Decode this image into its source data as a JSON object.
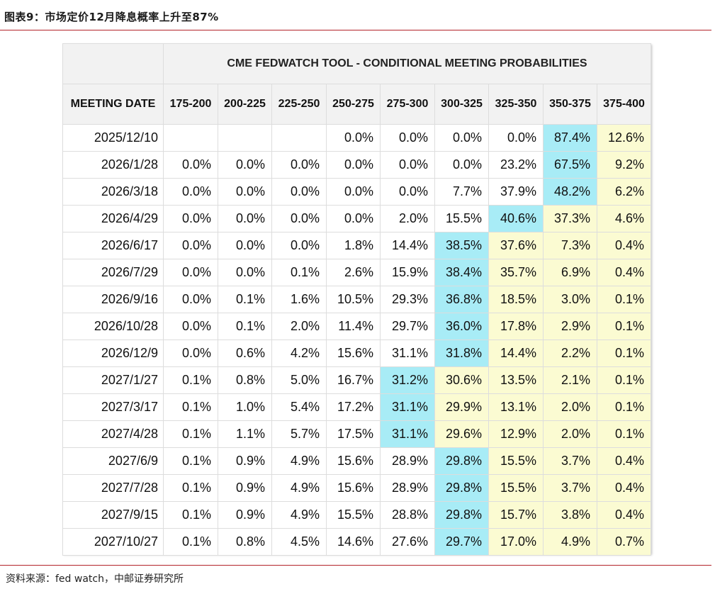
{
  "figure_title": "图表9：市场定价12月降息概率上升至87%",
  "source_note": "资料来源：fed watch，中邮证券研究所",
  "colors": {
    "rule": "#b3232a",
    "header_bg": "#f2f2f2",
    "highlight_max": "#a8ecf6",
    "highlight_after": "#fbfbd2"
  },
  "table": {
    "title": "CME FEDWATCH TOOL - CONDITIONAL MEETING PROBABILITIES",
    "date_header": "MEETING DATE",
    "columns": [
      "175-200",
      "200-225",
      "225-250",
      "250-275",
      "275-300",
      "300-325",
      "325-350",
      "350-375",
      "375-400"
    ],
    "rows": [
      {
        "date": "2025/12/10",
        "values": [
          "",
          "",
          "",
          "0.0%",
          "0.0%",
          "0.0%",
          "0.0%",
          "87.4%",
          "12.6%"
        ],
        "max_index": 7
      },
      {
        "date": "2026/1/28",
        "values": [
          "0.0%",
          "0.0%",
          "0.0%",
          "0.0%",
          "0.0%",
          "0.0%",
          "23.2%",
          "67.5%",
          "9.2%"
        ],
        "max_index": 7
      },
      {
        "date": "2026/3/18",
        "values": [
          "0.0%",
          "0.0%",
          "0.0%",
          "0.0%",
          "0.0%",
          "7.7%",
          "37.9%",
          "48.2%",
          "6.2%"
        ],
        "max_index": 7
      },
      {
        "date": "2026/4/29",
        "values": [
          "0.0%",
          "0.0%",
          "0.0%",
          "0.0%",
          "2.0%",
          "15.5%",
          "40.6%",
          "37.3%",
          "4.6%"
        ],
        "max_index": 6
      },
      {
        "date": "2026/6/17",
        "values": [
          "0.0%",
          "0.0%",
          "0.0%",
          "1.8%",
          "14.4%",
          "38.5%",
          "37.6%",
          "7.3%",
          "0.4%"
        ],
        "max_index": 5
      },
      {
        "date": "2026/7/29",
        "values": [
          "0.0%",
          "0.0%",
          "0.1%",
          "2.6%",
          "15.9%",
          "38.4%",
          "35.7%",
          "6.9%",
          "0.4%"
        ],
        "max_index": 5
      },
      {
        "date": "2026/9/16",
        "values": [
          "0.0%",
          "0.1%",
          "1.6%",
          "10.5%",
          "29.3%",
          "36.8%",
          "18.5%",
          "3.0%",
          "0.1%"
        ],
        "max_index": 5
      },
      {
        "date": "2026/10/28",
        "values": [
          "0.0%",
          "0.1%",
          "2.0%",
          "11.4%",
          "29.7%",
          "36.0%",
          "17.8%",
          "2.9%",
          "0.1%"
        ],
        "max_index": 5
      },
      {
        "date": "2026/12/9",
        "values": [
          "0.0%",
          "0.6%",
          "4.2%",
          "15.6%",
          "31.1%",
          "31.8%",
          "14.4%",
          "2.2%",
          "0.1%"
        ],
        "max_index": 5
      },
      {
        "date": "2027/1/27",
        "values": [
          "0.1%",
          "0.8%",
          "5.0%",
          "16.7%",
          "31.2%",
          "30.6%",
          "13.5%",
          "2.1%",
          "0.1%"
        ],
        "max_index": 4
      },
      {
        "date": "2027/3/17",
        "values": [
          "0.1%",
          "1.0%",
          "5.4%",
          "17.2%",
          "31.1%",
          "29.9%",
          "13.1%",
          "2.0%",
          "0.1%"
        ],
        "max_index": 4
      },
      {
        "date": "2027/4/28",
        "values": [
          "0.1%",
          "1.1%",
          "5.7%",
          "17.5%",
          "31.1%",
          "29.6%",
          "12.9%",
          "2.0%",
          "0.1%"
        ],
        "max_index": 4
      },
      {
        "date": "2027/6/9",
        "values": [
          "0.1%",
          "0.9%",
          "4.9%",
          "15.6%",
          "28.9%",
          "29.8%",
          "15.5%",
          "3.7%",
          "0.4%"
        ],
        "max_index": 5
      },
      {
        "date": "2027/7/28",
        "values": [
          "0.1%",
          "0.9%",
          "4.9%",
          "15.6%",
          "28.9%",
          "29.8%",
          "15.5%",
          "3.7%",
          "0.4%"
        ],
        "max_index": 5
      },
      {
        "date": "2027/9/15",
        "values": [
          "0.1%",
          "0.9%",
          "4.9%",
          "15.5%",
          "28.8%",
          "29.8%",
          "15.7%",
          "3.8%",
          "0.4%"
        ],
        "max_index": 5
      },
      {
        "date": "2027/10/27",
        "values": [
          "0.1%",
          "0.8%",
          "4.5%",
          "14.6%",
          "27.6%",
          "29.7%",
          "17.0%",
          "4.9%",
          "0.7%"
        ],
        "max_index": 5
      }
    ]
  }
}
